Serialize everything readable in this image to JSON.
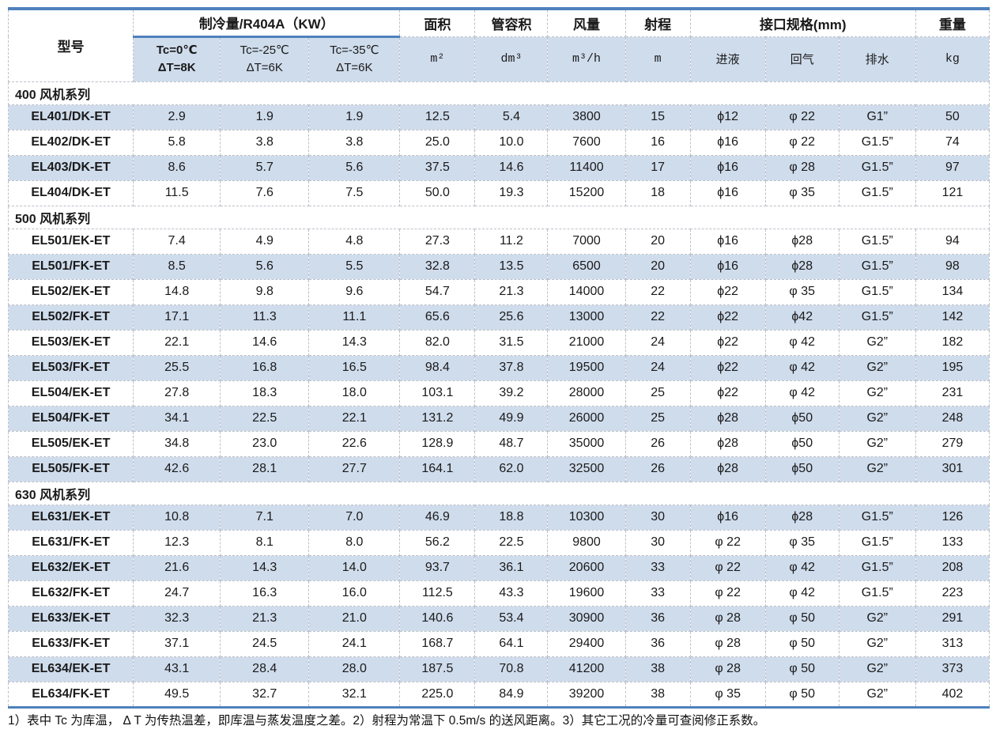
{
  "table": {
    "header": {
      "model": "型号",
      "cooling_group": "制冷量/R404A（KW）",
      "cooling_subs": [
        {
          "line1": "Tc=0℃",
          "line2": "ΔT=8K",
          "bold": true
        },
        {
          "line1": "Tc=-25℃",
          "line2": "ΔT=6K",
          "bold": false
        },
        {
          "line1": "Tc=-35℃",
          "line2": "ΔT=6K",
          "bold": false
        }
      ],
      "area": {
        "label": "面积",
        "unit": "m²"
      },
      "tube_volume": {
        "label": "管容积",
        "unit": "dm³"
      },
      "air_flow": {
        "label": "风量",
        "unit": "m³/h"
      },
      "throw": {
        "label": "射程",
        "unit": "m"
      },
      "connections_group": "接口规格(mm)",
      "connection_subs": [
        "进液",
        "回气",
        "排水"
      ],
      "weight": {
        "label": "重量",
        "unit": "kg"
      }
    },
    "sections": [
      {
        "title": "400 风机系列",
        "shade": "even",
        "rows": [
          {
            "model": "EL401/DK-ET",
            "values": [
              "2.9",
              "1.9",
              "1.9",
              "12.5",
              "5.4",
              "3800",
              "15",
              "ϕ12",
              "φ 22",
              "G1”",
              "50"
            ]
          },
          {
            "model": "EL402/DK-ET",
            "values": [
              "5.8",
              "3.8",
              "3.8",
              "25.0",
              "10.0",
              "7600",
              "16",
              "ϕ16",
              "φ 22",
              "G1.5”",
              "74"
            ]
          },
          {
            "model": "EL403/DK-ET",
            "values": [
              "8.6",
              "5.7",
              "5.6",
              "37.5",
              "14.6",
              "11400",
              "17",
              "ϕ16",
              "φ 28",
              "G1.5”",
              "97"
            ]
          },
          {
            "model": "EL404/DK-ET",
            "values": [
              "11.5",
              "7.6",
              "7.5",
              "50.0",
              "19.3",
              "15200",
              "18",
              "ϕ16",
              "φ 35",
              "G1.5”",
              "121"
            ]
          }
        ]
      },
      {
        "title": "500 风机系列",
        "shade": "odd",
        "rows": [
          {
            "model": "EL501/EK-ET",
            "values": [
              "7.4",
              "4.9",
              "4.8",
              "27.3",
              "11.2",
              "7000",
              "20",
              "ϕ16",
              "ϕ28",
              "G1.5”",
              "94"
            ]
          },
          {
            "model": "EL501/FK-ET",
            "values": [
              "8.5",
              "5.6",
              "5.5",
              "32.8",
              "13.5",
              "6500",
              "20",
              "ϕ16",
              "ϕ28",
              "G1.5”",
              "98"
            ]
          },
          {
            "model": "EL502/EK-ET",
            "values": [
              "14.8",
              "9.8",
              "9.6",
              "54.7",
              "21.3",
              "14000",
              "22",
              "ϕ22",
              "φ 35",
              "G1.5”",
              "134"
            ]
          },
          {
            "model": "EL502/FK-ET",
            "values": [
              "17.1",
              "11.3",
              "11.1",
              "65.6",
              "25.6",
              "13000",
              "22",
              "ϕ22",
              "ϕ42",
              "G1.5”",
              "142"
            ]
          },
          {
            "model": "EL503/EK-ET",
            "values": [
              "22.1",
              "14.6",
              "14.3",
              "82.0",
              "31.5",
              "21000",
              "24",
              "ϕ22",
              "φ 42",
              "G2”",
              "182"
            ]
          },
          {
            "model": "EL503/FK-ET",
            "values": [
              "25.5",
              "16.8",
              "16.5",
              "98.4",
              "37.8",
              "19500",
              "24",
              "ϕ22",
              "φ 42",
              "G2”",
              "195"
            ]
          },
          {
            "model": "EL504/EK-ET",
            "values": [
              "27.8",
              "18.3",
              "18.0",
              "103.1",
              "39.2",
              "28000",
              "25",
              "ϕ22",
              "φ 42",
              "G2”",
              "231"
            ]
          },
          {
            "model": "EL504/FK-ET",
            "values": [
              "34.1",
              "22.5",
              "22.1",
              "131.2",
              "49.9",
              "26000",
              "25",
              "ϕ28",
              "ϕ50",
              "G2”",
              "248"
            ]
          },
          {
            "model": "EL505/EK-ET",
            "values": [
              "34.8",
              "23.0",
              "22.6",
              "128.9",
              "48.7",
              "35000",
              "26",
              "ϕ28",
              "ϕ50",
              "G2”",
              "279"
            ]
          },
          {
            "model": "EL505/FK-ET",
            "values": [
              "42.6",
              "28.1",
              "27.7",
              "164.1",
              "62.0",
              "32500",
              "26",
              "ϕ28",
              "ϕ50",
              "G2”",
              "301"
            ]
          }
        ]
      },
      {
        "title": "630 风机系列",
        "shade": "even",
        "rows": [
          {
            "model": "EL631/EK-ET",
            "values": [
              "10.8",
              "7.1",
              "7.0",
              "46.9",
              "18.8",
              "10300",
              "30",
              "ϕ16",
              "ϕ28",
              "G1.5”",
              "126"
            ]
          },
          {
            "model": "EL631/FK-ET",
            "values": [
              "12.3",
              "8.1",
              "8.0",
              "56.2",
              "22.5",
              "9800",
              "30",
              "φ 22",
              "φ 35",
              "G1.5”",
              "133"
            ]
          },
          {
            "model": "EL632/EK-ET",
            "values": [
              "21.6",
              "14.3",
              "14.0",
              "93.7",
              "36.1",
              "20600",
              "33",
              "φ 22",
              "φ 42",
              "G1.5”",
              "208"
            ]
          },
          {
            "model": "EL632/FK-ET",
            "values": [
              "24.7",
              "16.3",
              "16.0",
              "112.5",
              "43.3",
              "19600",
              "33",
              "φ 22",
              "φ 42",
              "G1.5”",
              "223"
            ]
          },
          {
            "model": "EL633/EK-ET",
            "values": [
              "32.3",
              "21.3",
              "21.0",
              "140.6",
              "53.4",
              "30900",
              "36",
              "φ 28",
              "φ 50",
              "G2”",
              "291"
            ]
          },
          {
            "model": "EL633/FK-ET",
            "values": [
              "37.1",
              "24.5",
              "24.1",
              "168.7",
              "64.1",
              "29400",
              "36",
              "φ 28",
              "φ 50",
              "G2”",
              "313"
            ]
          },
          {
            "model": "EL634/EK-ET",
            "values": [
              "43.1",
              "28.4",
              "28.0",
              "187.5",
              "70.8",
              "41200",
              "38",
              "φ 28",
              "φ 50",
              "G2”",
              "373"
            ]
          },
          {
            "model": "EL634/FK-ET",
            "values": [
              "49.5",
              "32.7",
              "32.1",
              "225.0",
              "84.9",
              "39200",
              "38",
              "φ 35",
              "φ 50",
              "G2”",
              "402"
            ]
          }
        ]
      }
    ],
    "notes": "1）表中 Tc 为库温， Δ T 为传热温差，即库温与蒸发温度之差。2）射程为常温下 0.5m/s 的送风距离。3）其它工况的冷量可查阅修正系数。"
  },
  "colors": {
    "accent_blue_line": "#4f81bd",
    "shaded_cell_blue": "#cfdcec",
    "dashed_border_gray": "#bcc0c9"
  }
}
